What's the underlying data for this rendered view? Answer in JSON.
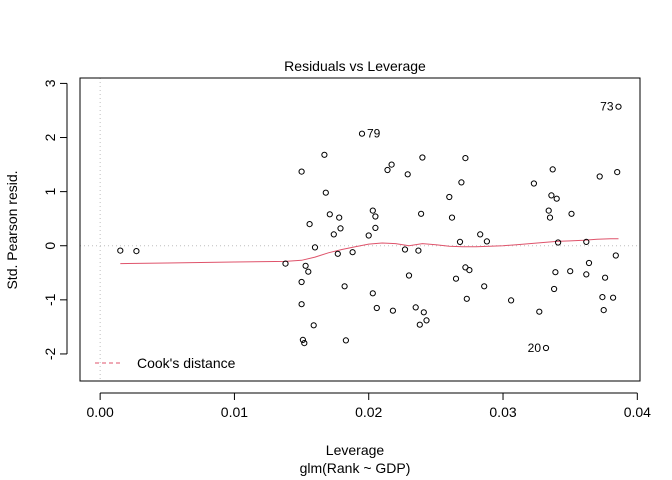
{
  "chart_data": {
    "type": "scatter",
    "title": "Residuals vs Leverage",
    "xlabel": "Leverage",
    "sublabel": "glm(Rank ~ GDP)",
    "ylabel": "Std. Pearson resid.",
    "xlim": [
      -0.0015,
      0.0402
    ],
    "ylim": [
      -2.5,
      3.1
    ],
    "x_ticks": [
      0.0,
      0.01,
      0.02,
      0.03,
      0.04
    ],
    "x_tick_labels": [
      "0.00",
      "0.01",
      "0.02",
      "0.03",
      "0.04"
    ],
    "y_ticks": [
      -2,
      -1,
      0,
      1,
      2,
      3
    ],
    "y_tick_labels": [
      "-2",
      "-1",
      "0",
      "1",
      "2",
      "3"
    ],
    "grid": false,
    "colors": {
      "points": "#000000",
      "smoother": "#DF536B",
      "reference": "#bebebe"
    },
    "points": [
      [
        0.0015,
        -0.09
      ],
      [
        0.0027,
        -0.1
      ],
      [
        0.0138,
        -0.33
      ],
      [
        0.015,
        1.37
      ],
      [
        0.015,
        -0.67
      ],
      [
        0.015,
        -1.08
      ],
      [
        0.0151,
        -1.74
      ],
      [
        0.0152,
        -1.8
      ],
      [
        0.0153,
        -0.37
      ],
      [
        0.0155,
        -0.48
      ],
      [
        0.0156,
        0.4
      ],
      [
        0.0159,
        -1.47
      ],
      [
        0.016,
        -0.03
      ],
      [
        0.0167,
        1.68
      ],
      [
        0.0168,
        0.98
      ],
      [
        0.0171,
        0.58
      ],
      [
        0.0174,
        0.21
      ],
      [
        0.0177,
        -0.15
      ],
      [
        0.0178,
        0.52
      ],
      [
        0.0179,
        0.32
      ],
      [
        0.0182,
        -0.75
      ],
      [
        0.0183,
        -1.75
      ],
      [
        0.0188,
        -0.12
      ],
      [
        0.0195,
        2.07
      ],
      [
        0.02,
        0.19
      ],
      [
        0.0203,
        0.65
      ],
      [
        0.0203,
        -0.88
      ],
      [
        0.0205,
        0.33
      ],
      [
        0.0205,
        0.54
      ],
      [
        0.0206,
        -1.15
      ],
      [
        0.0214,
        1.4
      ],
      [
        0.0217,
        1.5
      ],
      [
        0.0218,
        -1.2
      ],
      [
        0.0227,
        -0.07
      ],
      [
        0.0229,
        1.32
      ],
      [
        0.023,
        -0.55
      ],
      [
        0.0235,
        -1.14
      ],
      [
        0.0237,
        -0.09
      ],
      [
        0.0238,
        -1.46
      ],
      [
        0.0239,
        0.59
      ],
      [
        0.024,
        1.63
      ],
      [
        0.0241,
        -1.23
      ],
      [
        0.0243,
        -1.38
      ],
      [
        0.026,
        0.9
      ],
      [
        0.0262,
        0.52
      ],
      [
        0.0265,
        -0.61
      ],
      [
        0.0268,
        0.07
      ],
      [
        0.0269,
        1.17
      ],
      [
        0.0272,
        1.62
      ],
      [
        0.0272,
        -0.4
      ],
      [
        0.0273,
        -0.98
      ],
      [
        0.0275,
        -0.45
      ],
      [
        0.0283,
        0.21
      ],
      [
        0.0286,
        -0.75
      ],
      [
        0.0288,
        0.08
      ],
      [
        0.0306,
        -1.01
      ],
      [
        0.0323,
        1.15
      ],
      [
        0.0327,
        -1.22
      ],
      [
        0.0332,
        -1.89
      ],
      [
        0.0334,
        0.65
      ],
      [
        0.0335,
        0.52
      ],
      [
        0.0336,
        0.93
      ],
      [
        0.0337,
        1.41
      ],
      [
        0.0338,
        -0.8
      ],
      [
        0.0339,
        -0.49
      ],
      [
        0.034,
        0.87
      ],
      [
        0.0341,
        0.06
      ],
      [
        0.035,
        -0.47
      ],
      [
        0.0351,
        0.59
      ],
      [
        0.0362,
        -0.53
      ],
      [
        0.0362,
        0.07
      ],
      [
        0.0364,
        -0.32
      ],
      [
        0.0372,
        1.28
      ],
      [
        0.0374,
        -0.95
      ],
      [
        0.0375,
        -1.19
      ],
      [
        0.0376,
        -0.59
      ],
      [
        0.0382,
        -0.96
      ],
      [
        0.0384,
        -0.18
      ],
      [
        0.0385,
        1.36
      ],
      [
        0.0386,
        2.57
      ]
    ],
    "labeled_points": [
      {
        "label": "79",
        "x": 0.0195,
        "y": 2.07,
        "side": "right"
      },
      {
        "label": "73",
        "x": 0.0386,
        "y": 2.57,
        "side": "left"
      },
      {
        "label": "20",
        "x": 0.0332,
        "y": -1.89,
        "side": "left"
      }
    ],
    "smoother": [
      [
        0.0015,
        -0.33
      ],
      [
        0.005,
        -0.32
      ],
      [
        0.01,
        -0.3
      ],
      [
        0.0138,
        -0.29
      ],
      [
        0.015,
        -0.27
      ],
      [
        0.016,
        -0.21
      ],
      [
        0.017,
        -0.13
      ],
      [
        0.018,
        -0.07
      ],
      [
        0.019,
        -0.02
      ],
      [
        0.02,
        0.03
      ],
      [
        0.021,
        0.05
      ],
      [
        0.022,
        0.04
      ],
      [
        0.023,
        0.0
      ],
      [
        0.024,
        0.04
      ],
      [
        0.025,
        0.02
      ],
      [
        0.026,
        -0.01
      ],
      [
        0.027,
        -0.02
      ],
      [
        0.028,
        -0.02
      ],
      [
        0.029,
        -0.01
      ],
      [
        0.03,
        0.0
      ],
      [
        0.031,
        0.02
      ],
      [
        0.032,
        0.04
      ],
      [
        0.033,
        0.06
      ],
      [
        0.034,
        0.08
      ],
      [
        0.035,
        0.09
      ],
      [
        0.036,
        0.1
      ],
      [
        0.037,
        0.12
      ],
      [
        0.038,
        0.13
      ],
      [
        0.0386,
        0.13
      ]
    ],
    "legend": {
      "label": "Cook's distance",
      "position": "bottom-left"
    }
  }
}
